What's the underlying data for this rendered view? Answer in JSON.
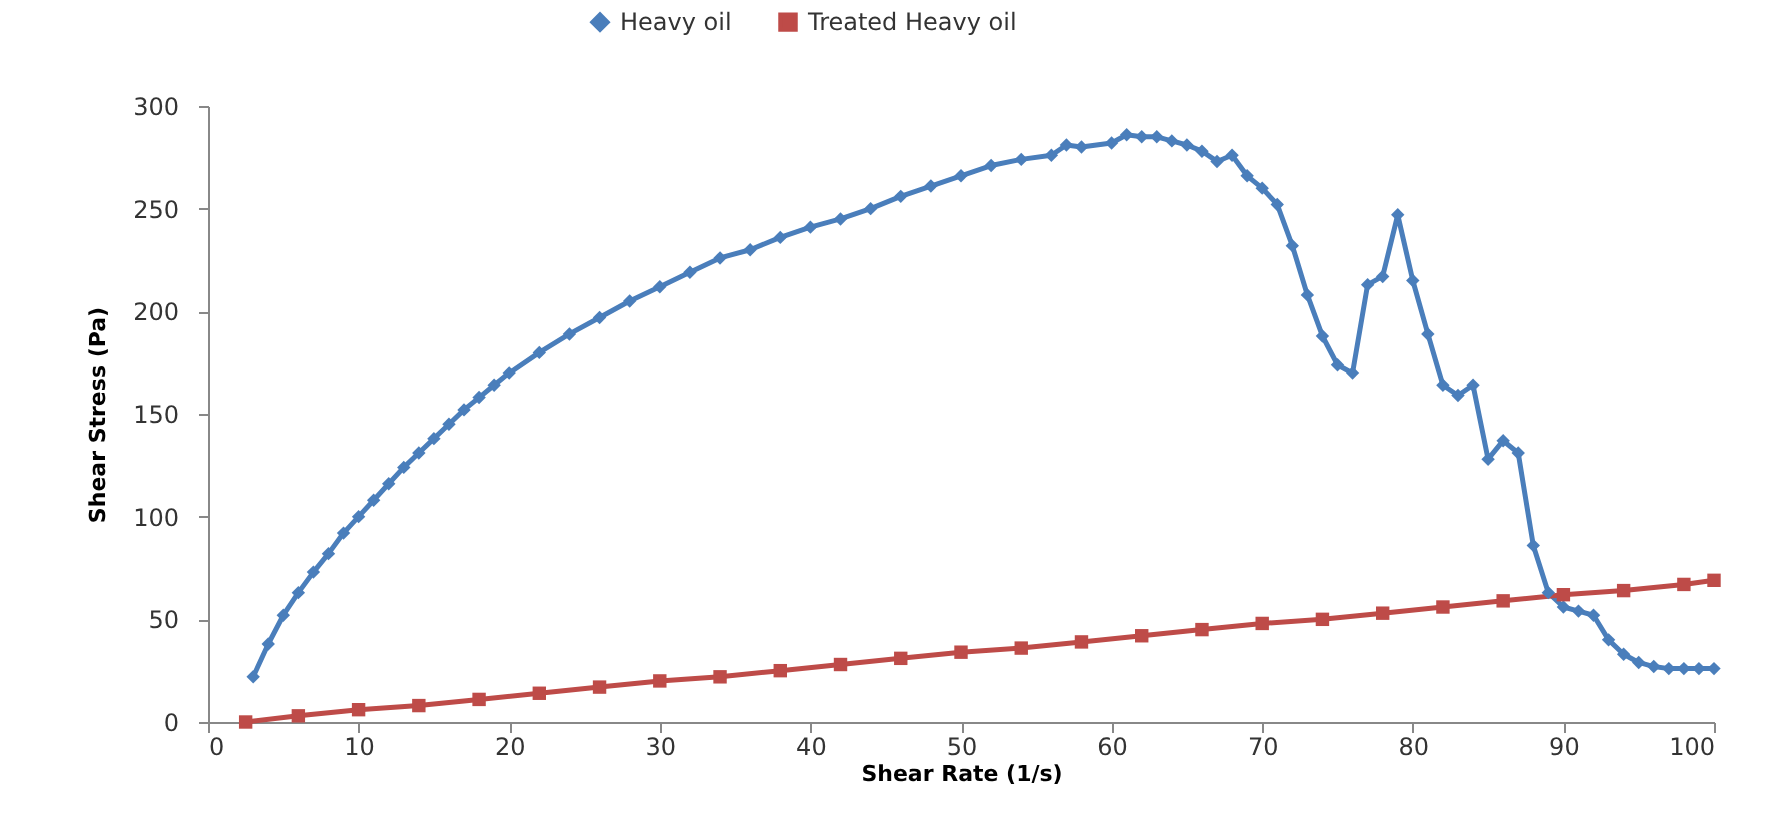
{
  "chart_data": {
    "type": "line",
    "xlabel": "Shear Rate (1/s)",
    "ylabel": "Shear Stress (Pa)",
    "xlim": [
      0,
      100
    ],
    "xticks": [
      0,
      10,
      20,
      30,
      40,
      50,
      60,
      70,
      80,
      90,
      100
    ],
    "ylim": [
      0,
      300
    ],
    "yticks": [
      0,
      50,
      100,
      150,
      200,
      250,
      300
    ],
    "grid": false,
    "legend": "top",
    "line_style": "solid",
    "series": [
      {
        "name": "Heavy oil",
        "color": "#4a7ebb",
        "marker": "diamond",
        "x": [
          3,
          4,
          5,
          6,
          7,
          8,
          9,
          10,
          11,
          12,
          13,
          14,
          15,
          16,
          17,
          18,
          19,
          20,
          22,
          24,
          26,
          28,
          30,
          32,
          34,
          36,
          38,
          40,
          42,
          44,
          46,
          48,
          50,
          52,
          54,
          56,
          57,
          58,
          60,
          61,
          62,
          63,
          64,
          65,
          66,
          67,
          68,
          69,
          70,
          71,
          72,
          73,
          74,
          75,
          76,
          77,
          78,
          79,
          80,
          81,
          82,
          83,
          84,
          85,
          86,
          87,
          88,
          89,
          90,
          91,
          92,
          93,
          94,
          95,
          96,
          97,
          98,
          99,
          100
        ],
        "values": [
          22,
          38,
          52,
          63,
          73,
          82,
          92,
          100,
          108,
          116,
          124,
          131,
          138,
          145,
          152,
          158,
          164,
          170,
          180,
          189,
          197,
          205,
          212,
          219,
          226,
          230,
          236,
          241,
          245,
          250,
          256,
          261,
          266,
          271,
          274,
          276,
          281,
          280,
          282,
          286,
          285,
          285,
          283,
          281,
          278,
          273,
          276,
          266,
          260,
          252,
          232,
          208,
          188,
          174,
          170,
          213,
          217,
          247,
          215,
          189,
          164,
          159,
          164,
          128,
          137,
          131,
          86,
          63,
          56,
          54,
          52,
          40,
          33,
          29,
          27,
          26,
          26,
          26,
          26
        ]
      },
      {
        "name": "Treated Heavy oil",
        "color": "#be4b48",
        "marker": "square",
        "x": [
          2.5,
          6,
          10,
          14,
          18,
          22,
          26,
          30,
          34,
          38,
          42,
          46,
          50,
          54,
          58,
          62,
          66,
          70,
          74,
          78,
          82,
          86,
          90,
          94,
          98,
          100
        ],
        "values": [
          0,
          3,
          6,
          8,
          11,
          14,
          17,
          20,
          22,
          25,
          28,
          31,
          34,
          36,
          39,
          42,
          45,
          48,
          50,
          53,
          56,
          59,
          62,
          64,
          67,
          69
        ]
      }
    ]
  }
}
